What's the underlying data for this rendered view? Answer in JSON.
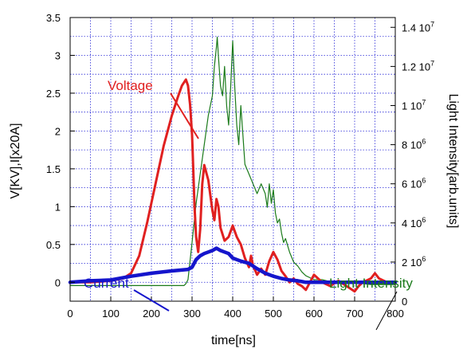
{
  "chart_data": {
    "type": "line",
    "xlabel": "time[ns]",
    "ylabel": "V[KV],I[x20A]",
    "y2label": "Light Intensity[arb.units]",
    "xlim": [
      0,
      800
    ],
    "ylim": [
      -0.25,
      3.5
    ],
    "y2lim": [
      0,
      14500000
    ],
    "grid": true,
    "x_ticks": [
      "0",
      "100",
      "200",
      "300",
      "400",
      "500",
      "600",
      "700",
      "800"
    ],
    "y_ticks": [
      "0",
      "0.5",
      "1",
      "1.5",
      "2",
      "2.5",
      "3",
      "3.5"
    ],
    "y2_ticks": [
      {
        "value": 0,
        "mantissa": "0",
        "exp": ""
      },
      {
        "value": 2000000,
        "mantissa": "2 10",
        "exp": "6"
      },
      {
        "value": 4000000,
        "mantissa": "4 10",
        "exp": "6"
      },
      {
        "value": 6000000,
        "mantissa": "6 10",
        "exp": "6"
      },
      {
        "value": 8000000,
        "mantissa": "8 10",
        "exp": "6"
      },
      {
        "value": 10000000,
        "mantissa": "1 10",
        "exp": "7"
      },
      {
        "value": 12000000,
        "mantissa": "1.2 10",
        "exp": "7"
      },
      {
        "value": 14000000,
        "mantissa": "1.4 10",
        "exp": "7"
      }
    ],
    "colors": {
      "voltage": "#e02020",
      "current": "#1515cc",
      "light": "#1a7a1a"
    },
    "series": [
      {
        "name": "Voltage",
        "axis": "left",
        "x": [
          0,
          50,
          100,
          130,
          150,
          170,
          190,
          210,
          230,
          250,
          265,
          275,
          285,
          290,
          295,
          300,
          303,
          306,
          310,
          315,
          320,
          325,
          330,
          340,
          350,
          355,
          360,
          365,
          370,
          380,
          390,
          400,
          410,
          420,
          430,
          440,
          445,
          450,
          460,
          470,
          480,
          490,
          500,
          510,
          520,
          530,
          540,
          550,
          560,
          570,
          580,
          590,
          600,
          610,
          620,
          640,
          660,
          680,
          700,
          710,
          720,
          740,
          750,
          760,
          780,
          800
        ],
        "y": [
          0,
          0,
          0.02,
          0.05,
          0.12,
          0.35,
          0.8,
          1.3,
          1.8,
          2.2,
          2.45,
          2.6,
          2.68,
          2.6,
          2.35,
          1.95,
          1.5,
          1.0,
          0.6,
          0.4,
          0.7,
          1.3,
          1.55,
          1.35,
          0.95,
          0.82,
          1.1,
          1.0,
          0.72,
          0.55,
          0.6,
          0.75,
          0.6,
          0.5,
          0.32,
          0.2,
          0.35,
          0.22,
          0.1,
          0.18,
          0.1,
          0.28,
          0.4,
          0.3,
          0.15,
          0.08,
          0.0,
          0.05,
          -0.02,
          -0.05,
          -0.1,
          0.0,
          0.1,
          0.05,
          0.0,
          -0.05,
          0.02,
          -0.05,
          -0.12,
          -0.05,
          0.0,
          0.05,
          0.12,
          0.05,
          0.0,
          0.0
        ]
      },
      {
        "name": "Current",
        "axis": "left",
        "x": [
          0,
          50,
          100,
          150,
          200,
          250,
          290,
          300,
          310,
          320,
          330,
          340,
          350,
          360,
          370,
          380,
          390,
          400,
          410,
          420,
          440,
          460,
          480,
          500,
          520,
          540,
          560,
          580,
          600,
          650,
          700,
          750,
          800
        ],
        "y": [
          0,
          0.02,
          0.03,
          0.08,
          0.12,
          0.15,
          0.17,
          0.2,
          0.3,
          0.35,
          0.38,
          0.4,
          0.42,
          0.45,
          0.42,
          0.4,
          0.38,
          0.32,
          0.3,
          0.28,
          0.25,
          0.18,
          0.12,
          0.08,
          0.05,
          0.03,
          0.02,
          0.0,
          0.0,
          0.0,
          0.0,
          0.0,
          0.0
        ]
      },
      {
        "name": "Light Intensity",
        "axis": "right",
        "x": [
          0,
          50,
          100,
          150,
          200,
          250,
          280,
          285,
          290,
          300,
          310,
          320,
          330,
          340,
          350,
          355,
          360,
          362,
          365,
          370,
          375,
          380,
          385,
          390,
          395,
          400,
          405,
          410,
          415,
          420,
          425,
          430,
          440,
          450,
          460,
          470,
          480,
          485,
          490,
          495,
          500,
          505,
          510,
          515,
          520,
          525,
          530,
          540,
          550,
          560,
          570,
          580,
          590,
          600,
          620,
          640,
          660,
          680,
          700,
          720,
          740,
          760,
          780,
          800
        ],
        "y": [
          800000,
          800000,
          800000,
          800000,
          800000,
          800000,
          800000,
          900000,
          1100000,
          3000000,
          5000000,
          6500000,
          8000000,
          9500000,
          10500000,
          12000000,
          13000000,
          13500000,
          12500000,
          11000000,
          10500000,
          12000000,
          10000000,
          9000000,
          11000000,
          13300000,
          11000000,
          9000000,
          8000000,
          10000000,
          8500000,
          7000000,
          6500000,
          6000000,
          5500000,
          6000000,
          5500000,
          4800000,
          6000000,
          5000000,
          5700000,
          4500000,
          4000000,
          4200000,
          3500000,
          3000000,
          3200000,
          2500000,
          2000000,
          1800000,
          1500000,
          1300000,
          1200000,
          1100000,
          1100000,
          1000000,
          950000,
          900000,
          900000,
          900000,
          850000,
          850000,
          850000,
          850000
        ]
      }
    ],
    "annotations": [
      {
        "text": "Voltage",
        "series": "Voltage"
      },
      {
        "text": "Current",
        "series": "Current"
      },
      {
        "text": "Light Intensity",
        "series": "Light Intensity"
      }
    ]
  }
}
